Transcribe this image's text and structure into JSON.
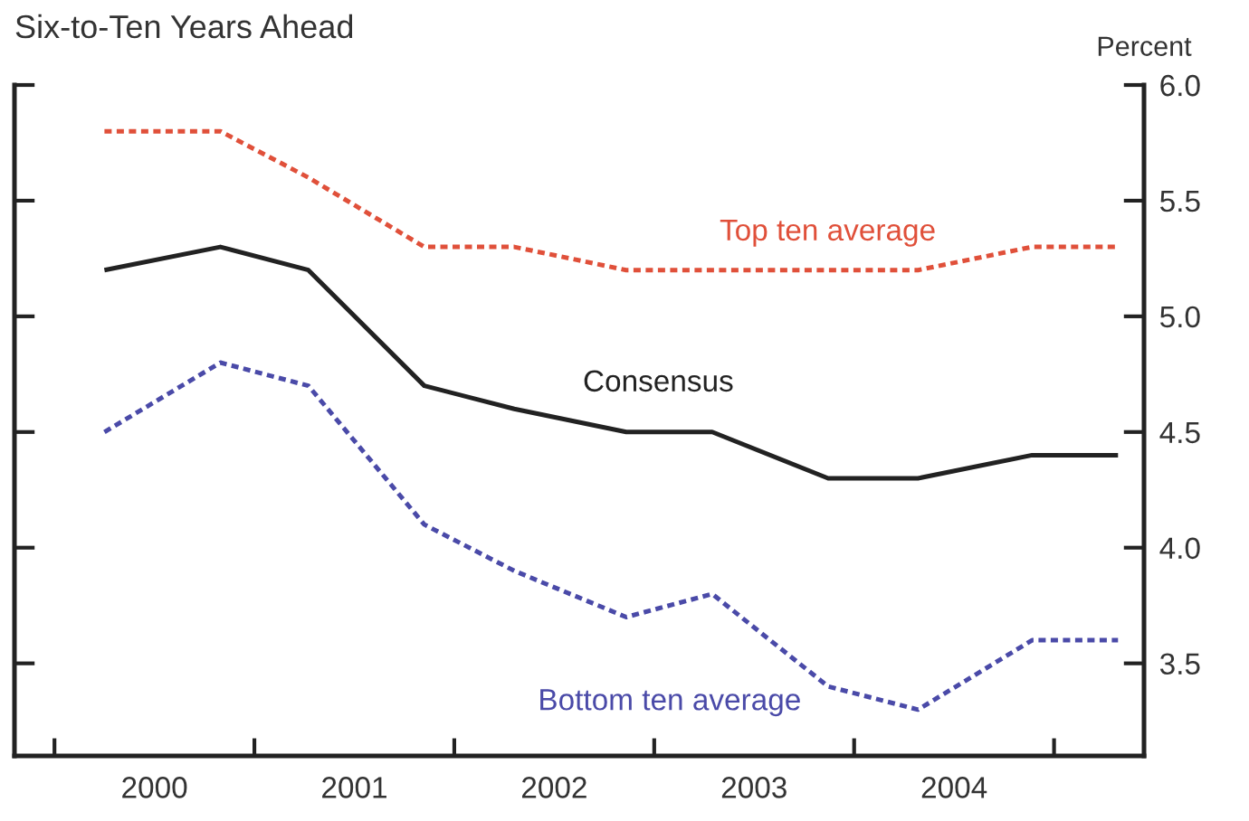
{
  "chart_data": {
    "type": "line",
    "title": "Six-to-Ten Years Ahead",
    "ylabel": "Percent",
    "xlim": [
      1999.8,
      2005.45
    ],
    "ylim": [
      3.1,
      6.0
    ],
    "xticks": [
      {
        "value": 2000,
        "label": null
      },
      {
        "value": 2001,
        "label": null
      },
      {
        "value": 2002,
        "label": null
      },
      {
        "value": 2003,
        "label": null
      },
      {
        "value": 2004,
        "label": null
      },
      {
        "value": 2005,
        "label": null
      },
      {
        "value": 2000.5,
        "label": "2000"
      },
      {
        "value": 2001.5,
        "label": "2001"
      },
      {
        "value": 2002.5,
        "label": "2002"
      },
      {
        "value": 2003.5,
        "label": "2003"
      },
      {
        "value": 2004.5,
        "label": "2004"
      }
    ],
    "yticks": [
      3.5,
      {
        "value": 4,
        "label": "4.0"
      },
      4.5,
      {
        "value": 5,
        "label": "5.0"
      },
      5.5,
      {
        "value": 6,
        "label": "6.0"
      }
    ],
    "x": [
      2000.25,
      2000.83,
      2001.27,
      2001.85,
      2002.3,
      2002.86,
      2003.29,
      2003.87,
      2004.32,
      2004.89,
      2005.32
    ],
    "series": [
      {
        "name": "Top ten average",
        "color": "#e0503a",
        "line_style": "dotted",
        "values": [
          5.8,
          5.8,
          5.6,
          5.3,
          5.3,
          5.2,
          5.2,
          5.2,
          5.2,
          5.3,
          5.3
        ]
      },
      {
        "name": "Consensus",
        "color": "#222222",
        "line_style": "solid",
        "values": [
          5.2,
          5.3,
          5.2,
          4.7,
          4.6,
          4.5,
          4.5,
          4.3,
          4.3,
          4.4,
          4.4
        ]
      },
      {
        "name": "Bottom ten average",
        "color": "#4a4aa8",
        "line_style": "dotted",
        "values": [
          4.5,
          4.8,
          4.7,
          4.1,
          3.9,
          3.7,
          3.8,
          3.4,
          3.3,
          3.6,
          3.6
        ]
      }
    ],
    "grid": false,
    "legend": false
  }
}
